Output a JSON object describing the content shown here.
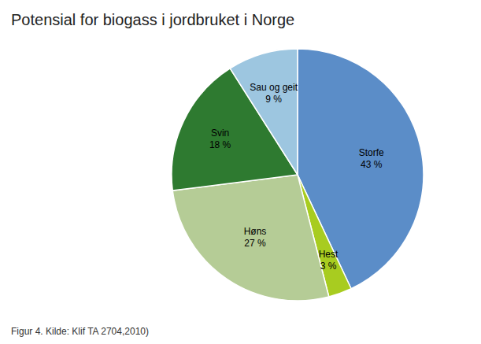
{
  "chart_data": {
    "type": "pie",
    "title": "Potensial for biogass i jordbruket i Norge",
    "annotations": [
      "Figur 4. Kilde: Klif TA 2704,2010)"
    ],
    "categories": [
      "Storfe",
      "Hest",
      "Høns",
      "Svin",
      "Sau og geit"
    ],
    "values": [
      43,
      3,
      27,
      18,
      9
    ],
    "value_labels": [
      "43 %",
      "3 %",
      "27 %",
      "18 %",
      "9 %"
    ],
    "colors": [
      "#5b8dc8",
      "#a8cc20",
      "#b5cc96",
      "#2e7a30",
      "#9dc6e0"
    ],
    "data_labels": true
  }
}
